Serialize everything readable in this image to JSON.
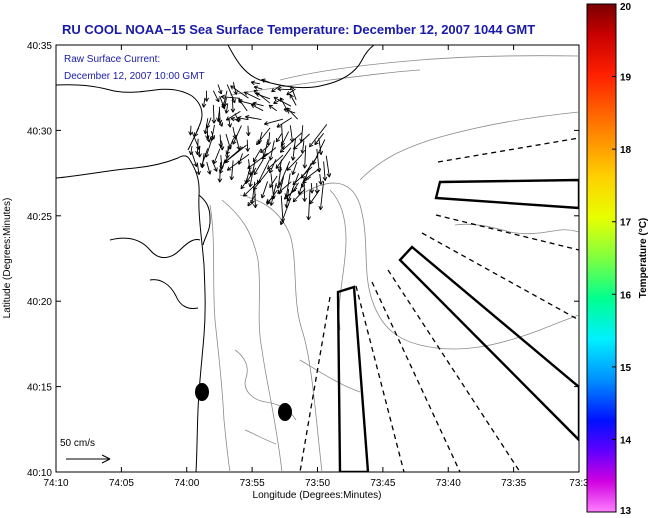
{
  "title": "RU COOL  NOAA−15  Sea Surface Temperature:  December 12, 2007 1044 GMT",
  "current_note": {
    "line1": "Raw Surface Current:",
    "line2": "December 12, 2007 10:00 GMT"
  },
  "scale_label": "50 cm/s",
  "x_axis": {
    "label": "Longitude (Degrees:Minutes)",
    "ticks": [
      "74:10",
      "74:05",
      "74:00",
      "73:55",
      "73:50",
      "73:45",
      "73:40",
      "73:35",
      "73:3"
    ]
  },
  "y_axis": {
    "label": "Latitude (Degrees:Minutes)",
    "ticks": [
      "40:35",
      "40:30",
      "40:25",
      "40:20",
      "40:15",
      "40:10"
    ]
  },
  "colorbar": {
    "label": "Temperature (°C)",
    "ticks": [
      "20",
      "19",
      "18",
      "17",
      "16",
      "15",
      "14",
      "13"
    ],
    "min": 13,
    "max": 20
  },
  "colors": {
    "title": "#1a1aa8",
    "contour": "#8a8a8a",
    "coast": "#000000"
  }
}
